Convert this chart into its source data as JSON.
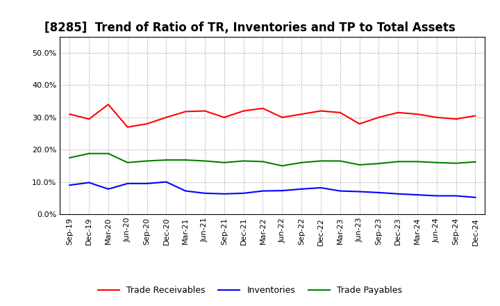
{
  "title": "[8285]  Trend of Ratio of TR, Inventories and TP to Total Assets",
  "x_labels": [
    "Sep-19",
    "Dec-19",
    "Mar-20",
    "Jun-20",
    "Sep-20",
    "Dec-20",
    "Mar-21",
    "Jun-21",
    "Sep-21",
    "Dec-21",
    "Mar-22",
    "Jun-22",
    "Sep-22",
    "Dec-22",
    "Mar-23",
    "Jun-23",
    "Sep-23",
    "Dec-23",
    "Mar-24",
    "Jun-24",
    "Sep-24",
    "Dec-24"
  ],
  "trade_receivables": [
    0.31,
    0.295,
    0.34,
    0.27,
    0.28,
    0.3,
    0.318,
    0.32,
    0.3,
    0.32,
    0.328,
    0.3,
    0.31,
    0.32,
    0.315,
    0.28,
    0.3,
    0.315,
    0.31,
    0.3,
    0.295,
    0.305
  ],
  "inventories": [
    0.09,
    0.098,
    0.078,
    0.095,
    0.095,
    0.1,
    0.072,
    0.065,
    0.063,
    0.065,
    0.072,
    0.073,
    0.078,
    0.082,
    0.072,
    0.07,
    0.067,
    0.063,
    0.06,
    0.057,
    0.057,
    0.052
  ],
  "trade_payables": [
    0.175,
    0.188,
    0.188,
    0.16,
    0.165,
    0.168,
    0.168,
    0.165,
    0.16,
    0.165,
    0.163,
    0.15,
    0.16,
    0.165,
    0.165,
    0.153,
    0.157,
    0.163,
    0.163,
    0.16,
    0.158,
    0.162
  ],
  "tr_color": "#ff0000",
  "inv_color": "#0000ff",
  "tp_color": "#008000",
  "ylim": [
    0.0,
    0.55
  ],
  "yticks": [
    0.0,
    0.1,
    0.2,
    0.3,
    0.4,
    0.5
  ],
  "background_color": "#ffffff",
  "grid_color": "#999999",
  "title_fontsize": 12,
  "tick_fontsize": 8,
  "legend_labels": [
    "Trade Receivables",
    "Inventories",
    "Trade Payables"
  ]
}
